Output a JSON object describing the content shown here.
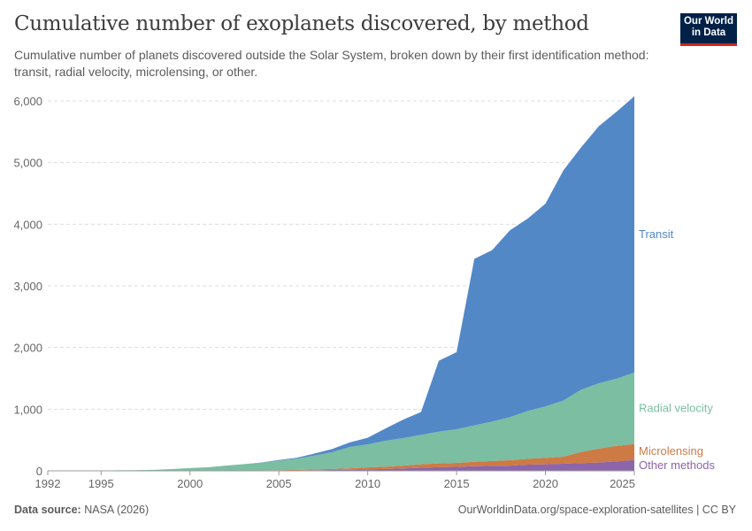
{
  "header": {
    "title": "Cumulative number of exoplanets discovered, by method",
    "subtitle": "Cumulative number of planets discovered outside the Solar System, broken down by their first identification method: transit, radial velocity, microlensing, or other.",
    "logo_line1": "Our World",
    "logo_line2": "in Data"
  },
  "footer": {
    "source_label": "Data source:",
    "source": "NASA (2026)",
    "url": "OurWorldinData.org/space-exploration-satellites | CC BY"
  },
  "chart_data": {
    "type": "area",
    "stacked": true,
    "title": "Cumulative number of exoplanets discovered, by method",
    "xlabel": "",
    "ylabel": "",
    "ylim": [
      0,
      6000
    ],
    "xlim": [
      1992,
      2025
    ],
    "grid": "horizontal dashed",
    "legend": "right, inline labels",
    "y_ticks": [
      {
        "v": 0,
        "label": "0"
      },
      {
        "v": 1000,
        "label": "1,000"
      },
      {
        "v": 2000,
        "label": "2,000"
      },
      {
        "v": 3000,
        "label": "3,000"
      },
      {
        "v": 4000,
        "label": "4,000"
      },
      {
        "v": 5000,
        "label": "5,000"
      },
      {
        "v": 6000,
        "label": "6,000"
      }
    ],
    "x_ticks": [
      {
        "v": 1992,
        "label": "1992"
      },
      {
        "v": 1995,
        "label": "1995"
      },
      {
        "v": 2000,
        "label": "2000"
      },
      {
        "v": 2005,
        "label": "2005"
      },
      {
        "v": 2010,
        "label": "2010"
      },
      {
        "v": 2015,
        "label": "2015"
      },
      {
        "v": 2020,
        "label": "2020"
      },
      {
        "v": 2025,
        "label": "2025"
      }
    ],
    "x": [
      1992,
      1993,
      1994,
      1995,
      1996,
      1997,
      1998,
      1999,
      2000,
      2001,
      2002,
      2003,
      2004,
      2005,
      2006,
      2007,
      2008,
      2009,
      2010,
      2011,
      2012,
      2013,
      2014,
      2015,
      2016,
      2017,
      2018,
      2019,
      2020,
      2021,
      2022,
      2023,
      2024,
      2025
    ],
    "series": [
      {
        "name": "Other methods",
        "color": "#8c65aa",
        "values": [
          2,
          2,
          3,
          3,
          3,
          3,
          3,
          3,
          3,
          3,
          3,
          4,
          5,
          6,
          8,
          11,
          14,
          18,
          25,
          30,
          40,
          50,
          60,
          65,
          75,
          80,
          85,
          100,
          105,
          115,
          125,
          135,
          155,
          175
        ]
      },
      {
        "name": "Microlensing",
        "color": "#ce7a45",
        "values": [
          0,
          0,
          0,
          0,
          0,
          0,
          0,
          0,
          0,
          0,
          0,
          0,
          2,
          4,
          8,
          12,
          17,
          23,
          30,
          38,
          45,
          55,
          60,
          65,
          72,
          80,
          88,
          95,
          105,
          115,
          180,
          225,
          250,
          260
        ]
      },
      {
        "name": "Radial velocity",
        "color": "#7bbea2",
        "values": [
          0,
          0,
          0,
          1,
          6,
          7,
          13,
          26,
          42,
          55,
          82,
          103,
          123,
          157,
          182,
          224,
          271,
          346,
          374,
          420,
          446,
          479,
          515,
          545,
          591,
          639,
          697,
          776,
          834,
          909,
          1010,
          1060,
          1090,
          1160
        ]
      },
      {
        "name": "Transit",
        "color": "#5388c7",
        "values": [
          0,
          0,
          0,
          0,
          0,
          0,
          0,
          0,
          0,
          0,
          0,
          0,
          5,
          8,
          13,
          33,
          52,
          74,
          108,
          200,
          300,
          370,
          1150,
          1250,
          2700,
          2780,
          3030,
          3120,
          3290,
          3730,
          3930,
          4170,
          4330,
          4480
        ]
      }
    ]
  }
}
